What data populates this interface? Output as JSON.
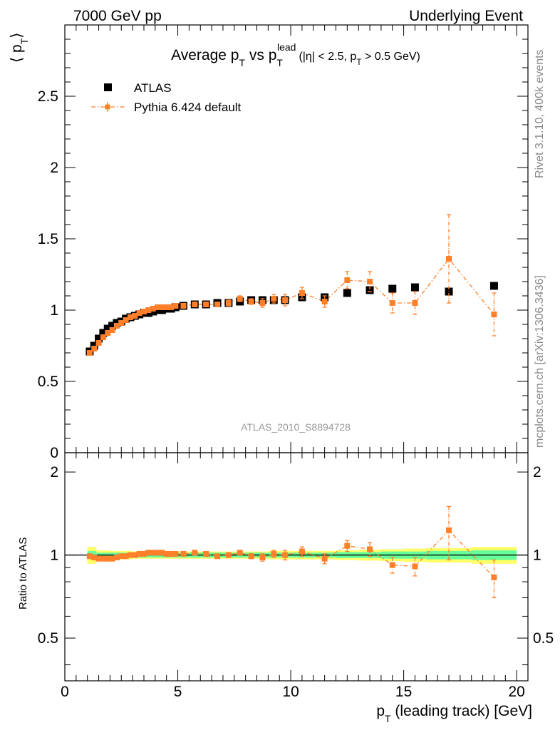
{
  "header": {
    "energy_label": "7000 GeV pp",
    "process_label": "Underlying Event"
  },
  "side": {
    "rivet_label": "Rivet 3.1.10,  400k events",
    "mcplots_label": "mcplots.cern.ch [arXiv:1306.3436]"
  },
  "chart_data": [
    {
      "type": "scatter",
      "title": {
        "main": "Average p",
        "main_sub": "T",
        "vs": " vs p",
        "vs_sub": "T",
        "vs_sup": "lead",
        "cut_open": "(|",
        "cut_eta": "η",
        "cut_mid": "| < 2.5, p",
        "cut_sub": "T",
        "cut_close": " > 0.5 GeV)"
      },
      "ylabel": {
        "open": "⟨ p",
        "sub": "T",
        "close": "⟩"
      },
      "watermark": "ATLAS_2010_S8894728",
      "xlim": [
        0,
        20.5
      ],
      "ylim": [
        0,
        3.0
      ],
      "log_y": false,
      "grid": false,
      "legend_position": "top-left",
      "yticks": [
        "0",
        "0.5",
        "1",
        "1.5",
        "2",
        "2.5"
      ],
      "series": [
        {
          "name": "ATLAS",
          "color": "#000000",
          "marker": "square",
          "x": [
            1.1,
            1.3,
            1.5,
            1.7,
            1.9,
            2.1,
            2.3,
            2.5,
            2.7,
            2.9,
            3.1,
            3.3,
            3.5,
            3.7,
            3.9,
            4.1,
            4.3,
            4.5,
            4.7,
            4.9,
            5.25,
            5.75,
            6.25,
            6.75,
            7.25,
            7.75,
            8.25,
            8.75,
            9.25,
            9.75,
            10.5,
            11.5,
            12.5,
            13.5,
            14.5,
            15.5,
            17.0,
            19.0
          ],
          "y": [
            0.71,
            0.75,
            0.8,
            0.84,
            0.87,
            0.89,
            0.91,
            0.92,
            0.94,
            0.95,
            0.96,
            0.97,
            0.98,
            0.98,
            0.99,
            1.0,
            1.0,
            1.01,
            1.01,
            1.02,
            1.03,
            1.04,
            1.04,
            1.05,
            1.05,
            1.06,
            1.07,
            1.07,
            1.07,
            1.07,
            1.09,
            1.09,
            1.12,
            1.14,
            1.15,
            1.16,
            1.13,
            1.17
          ]
        },
        {
          "name": "Pythia 6.424 default",
          "color": "#ff7f2a",
          "marker": "square",
          "line": "dash-dot",
          "x": [
            1.1,
            1.3,
            1.5,
            1.7,
            1.9,
            2.1,
            2.3,
            2.5,
            2.7,
            2.9,
            3.1,
            3.3,
            3.5,
            3.7,
            3.9,
            4.1,
            4.3,
            4.5,
            4.7,
            4.9,
            5.25,
            5.75,
            6.25,
            6.75,
            7.25,
            7.75,
            8.25,
            8.75,
            9.25,
            9.75,
            10.5,
            11.5,
            12.5,
            13.5,
            14.5,
            15.5,
            17.0,
            19.0
          ],
          "y": [
            0.7,
            0.73,
            0.77,
            0.81,
            0.84,
            0.86,
            0.89,
            0.91,
            0.93,
            0.95,
            0.96,
            0.98,
            0.99,
            1.0,
            1.01,
            1.02,
            1.02,
            1.02,
            1.02,
            1.03,
            1.03,
            1.04,
            1.04,
            1.04,
            1.05,
            1.08,
            1.06,
            1.05,
            1.08,
            1.07,
            1.12,
            1.06,
            1.21,
            1.2,
            1.05,
            1.05,
            1.36,
            0.97
          ],
          "yerr": [
            0.01,
            0.01,
            0.01,
            0.01,
            0.01,
            0.01,
            0.01,
            0.01,
            0.01,
            0.01,
            0.01,
            0.01,
            0.01,
            0.01,
            0.01,
            0.01,
            0.01,
            0.01,
            0.01,
            0.01,
            0.01,
            0.01,
            0.01,
            0.01,
            0.02,
            0.02,
            0.02,
            0.03,
            0.03,
            0.04,
            0.04,
            0.04,
            0.06,
            0.07,
            0.07,
            0.08,
            0.31,
            0.15
          ]
        }
      ]
    },
    {
      "type": "scatter",
      "ylabel": "Ratio to ATLAS",
      "xlabel": {
        "p": "p",
        "sub": "T",
        "rest": " (leading track) [GeV]"
      },
      "xlim": [
        0,
        20.5
      ],
      "ylim": [
        0.35,
        2.35
      ],
      "xticks": [
        "0",
        "5",
        "10",
        "15",
        "20"
      ],
      "yticks": [
        "0.5",
        "1",
        "2"
      ],
      "reference_line": 1,
      "band": {
        "x_edges": [
          1.0,
          1.4,
          2.0,
          3.0,
          4.0,
          5.0,
          6.0,
          7.0,
          8.0,
          9.0,
          10.0,
          11.0,
          12.0,
          13.0,
          14.0,
          15.0,
          16.0,
          18.0,
          20.0
        ],
        "inner": [
          0.035,
          0.02,
          0.02,
          0.02,
          0.02,
          0.02,
          0.02,
          0.02,
          0.02,
          0.02,
          0.02,
          0.02,
          0.025,
          0.025,
          0.03,
          0.03,
          0.035,
          0.04
        ],
        "outer": [
          0.07,
          0.04,
          0.035,
          0.03,
          0.03,
          0.03,
          0.03,
          0.03,
          0.03,
          0.035,
          0.035,
          0.035,
          0.04,
          0.045,
          0.05,
          0.055,
          0.06,
          0.07
        ],
        "inner_color": "#66ff99",
        "outer_color": "#ffff66"
      },
      "series": [
        {
          "name": "Pythia 6.424 default",
          "color": "#ff7f2a",
          "x": [
            1.1,
            1.3,
            1.5,
            1.7,
            1.9,
            2.1,
            2.3,
            2.5,
            2.7,
            2.9,
            3.1,
            3.3,
            3.5,
            3.7,
            3.9,
            4.1,
            4.3,
            4.5,
            4.7,
            4.9,
            5.25,
            5.75,
            6.25,
            6.75,
            7.25,
            7.75,
            8.25,
            8.75,
            9.25,
            9.75,
            10.5,
            11.5,
            12.5,
            13.5,
            14.5,
            15.5,
            17.0,
            19.0
          ],
          "y": [
            0.99,
            0.98,
            0.97,
            0.97,
            0.97,
            0.97,
            0.98,
            0.99,
            0.99,
            1.0,
            1.0,
            1.01,
            1.01,
            1.02,
            1.02,
            1.02,
            1.02,
            1.01,
            1.01,
            1.01,
            1.01,
            1.02,
            1.01,
            0.99,
            1.0,
            1.02,
            0.99,
            0.98,
            1.01,
            1.0,
            1.03,
            0.97,
            1.08,
            1.05,
            0.92,
            0.91,
            1.23,
            0.83
          ],
          "yerr": [
            0.01,
            0.01,
            0.01,
            0.01,
            0.01,
            0.01,
            0.01,
            0.01,
            0.01,
            0.01,
            0.01,
            0.01,
            0.01,
            0.01,
            0.01,
            0.01,
            0.01,
            0.01,
            0.01,
            0.01,
            0.01,
            0.01,
            0.01,
            0.01,
            0.02,
            0.02,
            0.02,
            0.03,
            0.03,
            0.04,
            0.04,
            0.04,
            0.05,
            0.06,
            0.06,
            0.07,
            0.27,
            0.13
          ]
        }
      ]
    }
  ]
}
